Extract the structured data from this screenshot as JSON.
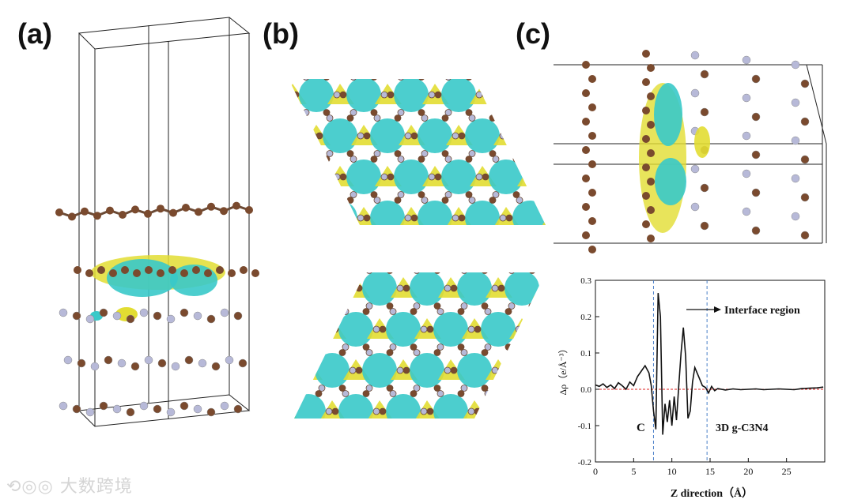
{
  "panels": {
    "a": {
      "label": "(a)"
    },
    "b": {
      "label": "(b)"
    },
    "c": {
      "label": "(c)"
    }
  },
  "colors": {
    "carbon": "#7a4a2e",
    "nitrogen": "#b7b9d8",
    "cyan": "#39c9c9",
    "yellow": "#e2dd32",
    "bond": "#6b4a35"
  },
  "watermark": "大数跨境",
  "chart_data": {
    "type": "line",
    "xlabel": "Z direction（Å）",
    "ylabel": "Δρ（e/Å⁻³）",
    "xlim": [
      0,
      30
    ],
    "ylim": [
      -0.2,
      0.3
    ],
    "xticks": [
      0,
      5,
      10,
      15,
      20,
      25
    ],
    "yticks": [
      -0.2,
      -0.1,
      0.0,
      0.1,
      0.2,
      0.3
    ],
    "ytick_labels": [
      "-0.2",
      "-0.1",
      "0.0",
      "0.1",
      "0.2",
      "0.3"
    ],
    "interface_lines_x": [
      7.6,
      14.6
    ],
    "reference_line_y": 0.0,
    "annotations": {
      "interface": "Interface region",
      "left_region": "C",
      "right_region": "3D g-C3N4"
    },
    "series": [
      {
        "name": "Δρ",
        "x": [
          0,
          0.5,
          1,
          1.5,
          2,
          2.5,
          3,
          3.5,
          4,
          4.5,
          5,
          5.5,
          6,
          6.5,
          7,
          7.3,
          7.6,
          7.9,
          8.2,
          8.5,
          8.8,
          9.1,
          9.4,
          9.7,
          10,
          10.3,
          10.6,
          10.9,
          11.2,
          11.5,
          11.8,
          12.1,
          12.4,
          12.7,
          13,
          13.3,
          13.6,
          14,
          14.4,
          14.8,
          15.2,
          15.6,
          16,
          17,
          18,
          19,
          20,
          21,
          22,
          23,
          24,
          25,
          26,
          27,
          28,
          29,
          29.8
        ],
        "y": [
          0.012,
          0.008,
          0.015,
          0.005,
          0.012,
          0.002,
          0.018,
          0.01,
          0.0,
          0.02,
          0.01,
          0.035,
          0.05,
          0.065,
          0.045,
          0.01,
          -0.06,
          -0.11,
          0.265,
          0.2,
          -0.125,
          -0.04,
          -0.09,
          -0.03,
          -0.1,
          -0.02,
          -0.085,
          0.01,
          0.1,
          0.17,
          0.09,
          -0.08,
          -0.06,
          0.02,
          0.06,
          0.045,
          0.03,
          0.01,
          0.005,
          -0.01,
          0.008,
          -0.004,
          0.002,
          -0.002,
          0.001,
          -0.001,
          0.0,
          0.001,
          -0.001,
          0.0,
          0.001,
          0.0,
          -0.001,
          0.002,
          0.003,
          0.004,
          0.006
        ]
      }
    ]
  }
}
